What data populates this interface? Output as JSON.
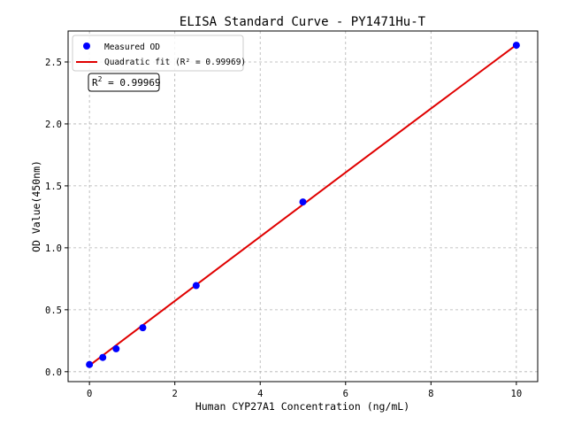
{
  "chart_data": {
    "type": "scatter",
    "title": "ELISA Standard Curve - PY1471Hu-T",
    "xlabel": "Human CYP27A1 Concentration (ng/mL)",
    "ylabel": "OD Value(450nm)",
    "xlim": [
      -0.5,
      10.5
    ],
    "ylim": [
      -0.08,
      2.75
    ],
    "xticks": [
      0,
      2,
      4,
      6,
      8,
      10
    ],
    "xtick_labels": [
      "0",
      "2",
      "4",
      "6",
      "8",
      "10"
    ],
    "yticks": [
      0.0,
      0.5,
      1.0,
      1.5,
      2.0,
      2.5
    ],
    "ytick_labels": [
      "0.0",
      "0.5",
      "1.0",
      "1.5",
      "2.0",
      "2.5"
    ],
    "grid": true,
    "legend_position": "top-left",
    "series": [
      {
        "name": "Measured OD",
        "kind": "scatter",
        "color": "#0000ff",
        "x": [
          0,
          0.3125,
          0.625,
          1.25,
          2.5,
          5,
          10
        ],
        "y": [
          0.058,
          0.115,
          0.185,
          0.355,
          0.695,
          1.37,
          2.635
        ]
      },
      {
        "name": "Quadratic fit (R² = 0.99969)",
        "kind": "line",
        "color": "#e00000",
        "x": [
          0,
          1,
          2,
          3,
          4,
          5,
          6,
          7,
          8,
          9,
          10
        ],
        "y": [
          0.05,
          0.311,
          0.571,
          0.831,
          1.09,
          1.349,
          1.608,
          1.866,
          2.124,
          2.381,
          2.638
        ]
      }
    ],
    "annotation": {
      "r_label": "R",
      "r_exponent": "2",
      "r_value": " = 0.99969"
    }
  }
}
